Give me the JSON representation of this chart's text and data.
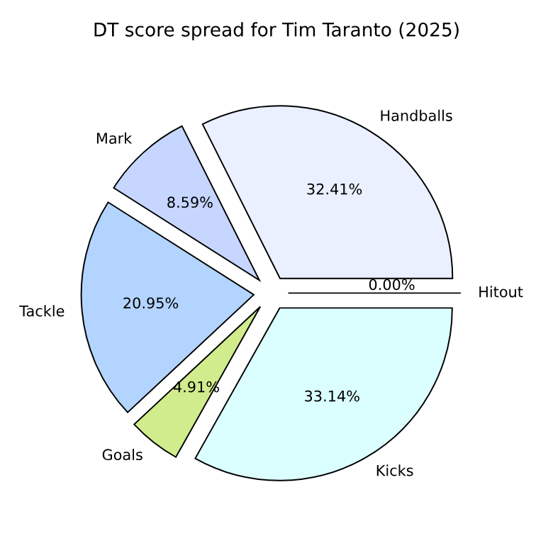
{
  "chart_data": {
    "type": "pie",
    "title": "DT score spread for Tim Taranto (2025)",
    "categories": [
      "Hitout",
      "Handballs",
      "Mark",
      "Tackle",
      "Goals",
      "Kicks"
    ],
    "values": [
      0.0,
      32.41,
      8.59,
      20.95,
      4.91,
      33.14
    ],
    "colors": [
      "#ffffff",
      "#eaf0ff",
      "#c6d6ff",
      "#b3d4ff",
      "#d0ec8c",
      "#dbffff"
    ],
    "value_labels": [
      "0.00%",
      "32.41%",
      "8.59%",
      "20.95%",
      "4.91%",
      "33.14%"
    ],
    "legend": false
  }
}
